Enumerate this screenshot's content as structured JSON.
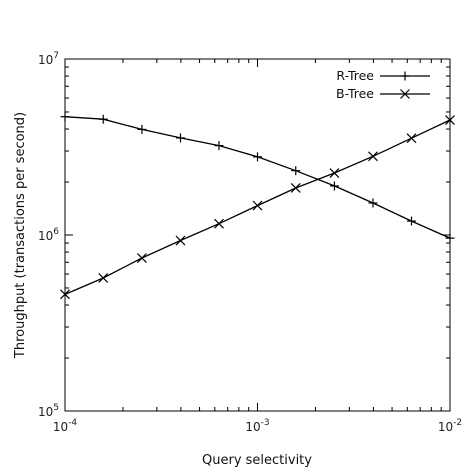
{
  "chart_data": {
    "type": "line",
    "xlabel": "Query selectivity",
    "ylabel": "Throughput (transactions per second)",
    "xscale": "log",
    "yscale": "log",
    "xlim": [
      0.0001,
      0.01
    ],
    "ylim": [
      100000,
      10000000
    ],
    "grid": false,
    "legend_position": "top-right",
    "x_ticks": [
      {
        "base": "10",
        "exp": "-4",
        "value": 0.0001
      },
      {
        "base": "10",
        "exp": "-3",
        "value": 0.001
      },
      {
        "base": "10",
        "exp": "-2",
        "value": 0.01
      }
    ],
    "y_ticks": [
      {
        "base": "10",
        "exp": "5",
        "value": 100000
      },
      {
        "base": "10",
        "exp": "6",
        "value": 1000000
      },
      {
        "base": "10",
        "exp": "7",
        "value": 10000000
      }
    ],
    "x": [
      0.0001,
      0.000158,
      0.000251,
      0.000398,
      0.000631,
      0.001,
      0.00158,
      0.00251,
      0.00398,
      0.00631,
      0.01
    ],
    "series": [
      {
        "name": "R-Tree",
        "marker": "plus",
        "values": [
          4700000,
          4550000,
          3980000,
          3560000,
          3220000,
          2780000,
          2320000,
          1900000,
          1520000,
          1200000,
          960000
        ]
      },
      {
        "name": "B-Tree",
        "marker": "cross",
        "values": [
          460000,
          570000,
          740000,
          930000,
          1160000,
          1470000,
          1850000,
          2250000,
          2800000,
          3550000,
          4500000
        ]
      }
    ]
  }
}
